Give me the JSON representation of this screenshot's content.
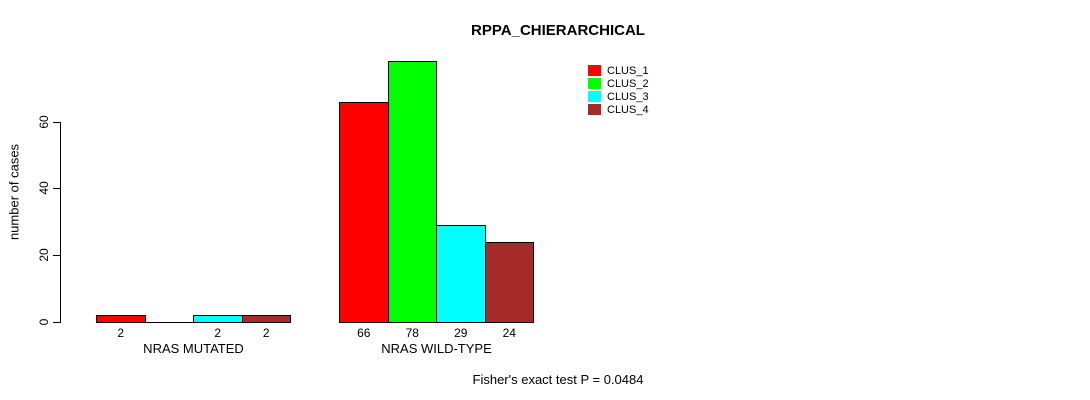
{
  "title": "RPPA_CHIERARCHICAL",
  "footer": {
    "text": "Fisher's exact test P = 0.0484"
  },
  "chart_data": {
    "type": "bar",
    "title": "RPPA_CHIERARCHICAL",
    "xlabel": "",
    "ylabel": "number of cases",
    "categories": [
      "NRAS MUTATED",
      "NRAS WILD-TYPE"
    ],
    "series": [
      {
        "name": "CLUS_1",
        "color": "#ff0000",
        "values": [
          2,
          66
        ]
      },
      {
        "name": "CLUS_2",
        "color": "#00ff00",
        "values": [
          0,
          78
        ]
      },
      {
        "name": "CLUS_3",
        "color": "#00ffff",
        "values": [
          2,
          29
        ]
      },
      {
        "name": "CLUS_4",
        "color": "#a52a2a",
        "values": [
          2,
          24
        ]
      }
    ],
    "bar_value_labels": {
      "NRAS MUTATED": [
        "2",
        "",
        "2",
        "2"
      ],
      "NRAS WILD-TYPE": [
        "66",
        "78",
        "29",
        "24"
      ]
    },
    "yticks": [
      0,
      20,
      40,
      60
    ],
    "ylim": [
      0,
      80
    ],
    "grid": false,
    "legend_position": "top-right",
    "annotation": "Fisher's exact test P = 0.0484",
    "plot_background": "#ffffff",
    "bar_border_color": "#000000"
  }
}
